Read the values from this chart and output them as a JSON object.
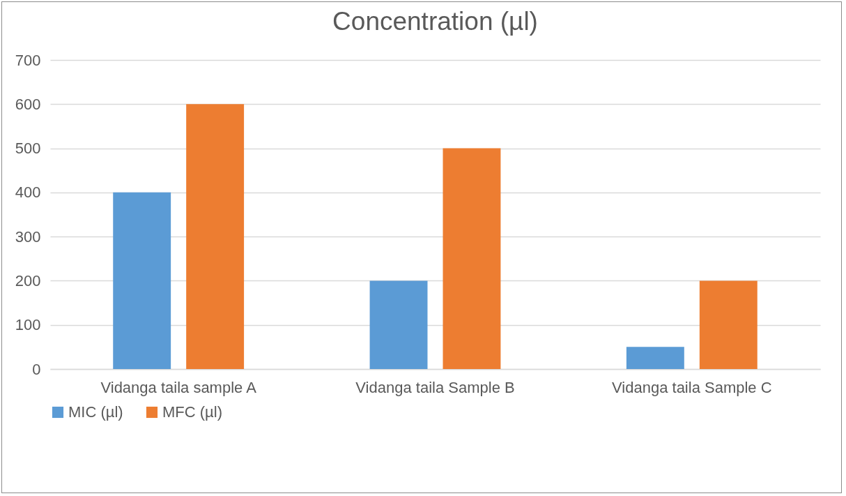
{
  "chart_data": {
    "type": "bar",
    "title": "Concentration (µl)",
    "categories": [
      "Vidanga taila sample A",
      "Vidanga taila Sample B",
      "Vidanga taila Sample C"
    ],
    "series": [
      {
        "name": "MIC (µl)",
        "color": "#5b9bd5",
        "values": [
          400,
          200,
          50
        ]
      },
      {
        "name": "MFC (µl)",
        "color": "#ed7d31",
        "values": [
          600,
          500,
          200
        ]
      }
    ],
    "ylim": [
      0,
      700
    ],
    "yticks": [
      0,
      100,
      200,
      300,
      400,
      500,
      600,
      700
    ],
    "grid": "y",
    "legend": "bottom"
  }
}
